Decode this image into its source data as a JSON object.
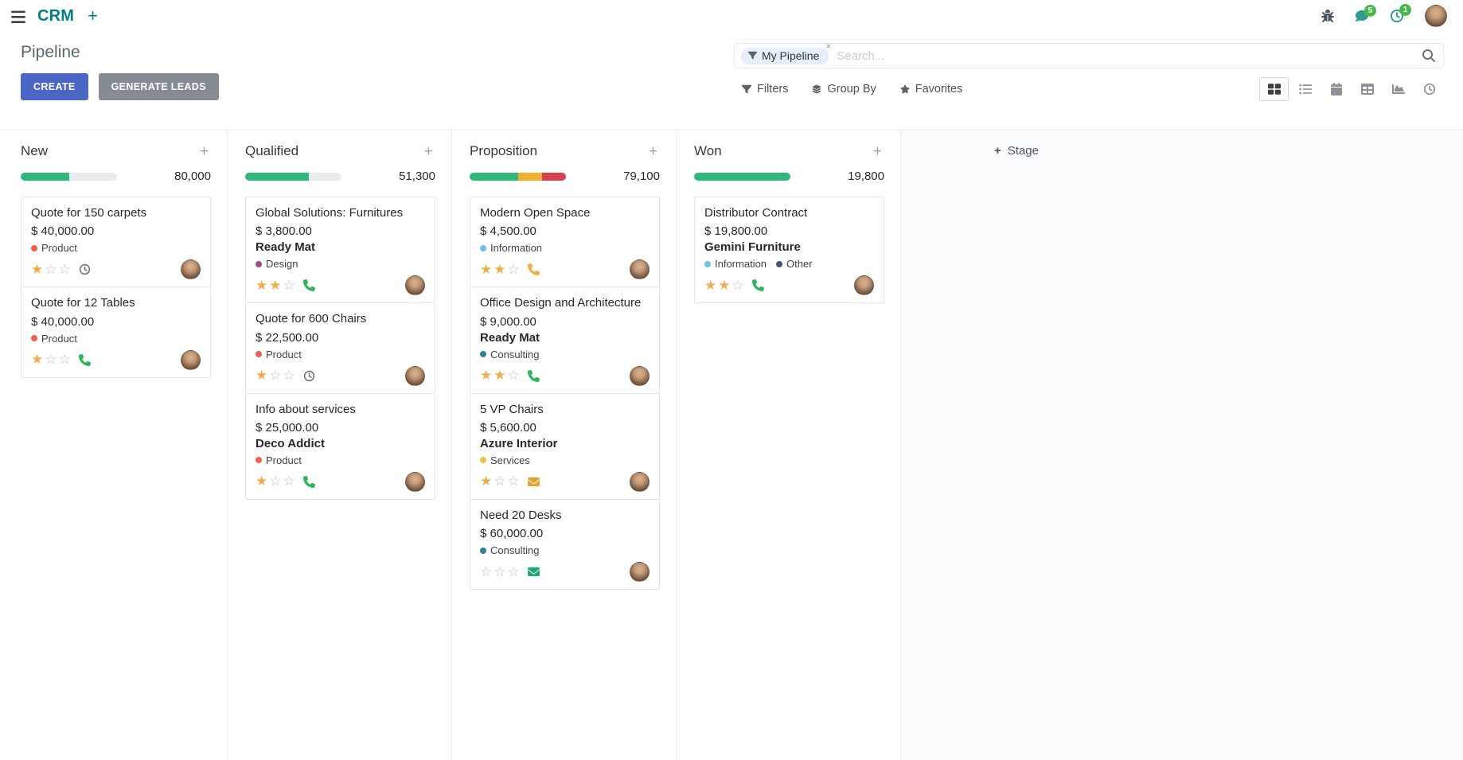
{
  "glyphs": {
    "plus": "+",
    "close": "×",
    "star_filled": "★",
    "star_empty": "☆"
  },
  "colors": {
    "accent": "#4C66C8",
    "secondary_button": "#848B95",
    "navbar_brand": "#017E84",
    "badge": "#46B84C",
    "progress_track": "#E9ECEF",
    "star_gold": "#F0AD4E"
  },
  "navbar": {
    "app_name": "CRM",
    "messages_badge": "5",
    "activities_badge": "1"
  },
  "control_panel": {
    "title": "Pipeline",
    "create_label": "CREATE",
    "generate_leads_label": "GENERATE LEADS",
    "search": {
      "facet_label": "My Pipeline",
      "placeholder": "Search..."
    },
    "filter_menus": [
      {
        "name": "filters",
        "label": "Filters",
        "icon": "filter"
      },
      {
        "name": "group-by",
        "label": "Group By",
        "icon": "layers"
      },
      {
        "name": "favorites",
        "label": "Favorites",
        "icon": "star"
      }
    ],
    "view_switcher": [
      {
        "name": "kanban",
        "active": true
      },
      {
        "name": "list",
        "active": false
      },
      {
        "name": "calendar",
        "active": false
      },
      {
        "name": "pivot",
        "active": false
      },
      {
        "name": "graph",
        "active": false
      },
      {
        "name": "activity",
        "active": false
      }
    ]
  },
  "board": {
    "add_stage_label": "Stage",
    "columns": [
      {
        "name": "New",
        "total": "80,000",
        "progress": [
          {
            "color": "#2EB97B",
            "pct": 50
          }
        ],
        "cards": [
          {
            "title": "Quote for 150 carpets",
            "amount": "$ 40,000.00",
            "tags": [
              {
                "label": "Product",
                "color": "#F06050"
              }
            ],
            "stars": 1,
            "activity": {
              "icon": "clock",
              "color": "#757575"
            }
          },
          {
            "title": "Quote for 12 Tables",
            "amount": "$ 40,000.00",
            "tags": [
              {
                "label": "Product",
                "color": "#F06050"
              }
            ],
            "stars": 1,
            "activity": {
              "icon": "phone",
              "color": "#2DB55D"
            }
          }
        ]
      },
      {
        "name": "Qualified",
        "total": "51,300",
        "progress": [
          {
            "color": "#2EB97B",
            "pct": 66
          }
        ],
        "cards": [
          {
            "title": "Global Solutions: Furnitures",
            "amount": "$ 3,800.00",
            "partner": "Ready Mat",
            "tags": [
              {
                "label": "Design",
                "color": "#9C4B8F"
              }
            ],
            "stars": 2,
            "activity": {
              "icon": "phone",
              "color": "#2DB55D"
            }
          },
          {
            "title": "Quote for 600 Chairs",
            "amount": "$ 22,500.00",
            "tags": [
              {
                "label": "Product",
                "color": "#F06050"
              }
            ],
            "stars": 1,
            "activity": {
              "icon": "clock",
              "color": "#757575"
            }
          },
          {
            "title": "Info about services",
            "amount": "$ 25,000.00",
            "partner": "Deco Addict",
            "tags": [
              {
                "label": "Product",
                "color": "#F06050"
              }
            ],
            "stars": 1,
            "activity": {
              "icon": "phone",
              "color": "#2DB55D"
            }
          }
        ]
      },
      {
        "name": "Proposition",
        "total": "79,100",
        "progress": [
          {
            "color": "#2EB97B",
            "pct": 50
          },
          {
            "color": "#F0B02F",
            "pct": 25
          },
          {
            "color": "#DC3F50",
            "pct": 25
          }
        ],
        "cards": [
          {
            "title": "Modern Open Space",
            "amount": "$ 4,500.00",
            "tags": [
              {
                "label": "Information",
                "color": "#6CC1ED"
              }
            ],
            "stars": 2,
            "activity": {
              "icon": "phone",
              "color": "#F1AE46"
            }
          },
          {
            "title": "Office Design and Architecture",
            "amount": "$ 9,000.00",
            "partner": "Ready Mat",
            "tags": [
              {
                "label": "Consulting",
                "color": "#2C8397"
              }
            ],
            "stars": 2,
            "activity": {
              "icon": "phone",
              "color": "#2DB55D"
            }
          },
          {
            "title": "5 VP Chairs",
            "amount": "$ 5,600.00",
            "partner": "Azure Interior",
            "tags": [
              {
                "label": "Services",
                "color": "#EFC143"
              }
            ],
            "stars": 1,
            "activity": {
              "icon": "envelope",
              "color": "#DFA531"
            }
          },
          {
            "title": "Need 20 Desks",
            "amount": "$ 60,000.00",
            "tags": [
              {
                "label": "Consulting",
                "color": "#2C8397"
              }
            ],
            "stars": 0,
            "activity": {
              "icon": "envelope",
              "color": "#1EA97C"
            }
          }
        ]
      },
      {
        "name": "Won",
        "total": "19,800",
        "progress": [
          {
            "color": "#2EB97B",
            "pct": 100
          }
        ],
        "cards": [
          {
            "title": "Distributor Contract",
            "amount": "$ 19,800.00",
            "partner": "Gemini Furniture",
            "tags": [
              {
                "label": "Information",
                "color": "#6CC1ED"
              },
              {
                "label": "Other",
                "color": "#475577"
              }
            ],
            "stars": 2,
            "activity": {
              "icon": "phone",
              "color": "#2DB55D"
            }
          }
        ]
      }
    ]
  }
}
